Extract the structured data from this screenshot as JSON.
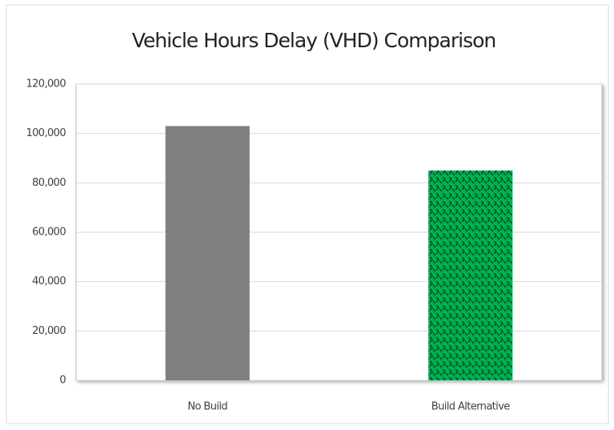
{
  "chart_data": {
    "type": "bar",
    "title": "Vehicle Hours Delay (VHD) Comparison",
    "categories": [
      "No Build",
      "Build Alternative"
    ],
    "values": [
      103000,
      85000
    ],
    "colors": [
      "#7f7f7f",
      "#00b050"
    ],
    "patterns": [
      "solid",
      "chevron"
    ],
    "ylim": [
      0,
      120000
    ],
    "yticks": [
      0,
      {
        "value": 20000,
        "label": "20,000"
      },
      {
        "value": 40000,
        "label": "40,000"
      },
      {
        "value": 60000,
        "label": "60,000"
      },
      {
        "value": 80000,
        "label": "80,000"
      },
      {
        "value": 100000,
        "label": "100,000"
      },
      {
        "value": 120000,
        "label": "120,000"
      }
    ],
    "grid": true
  }
}
